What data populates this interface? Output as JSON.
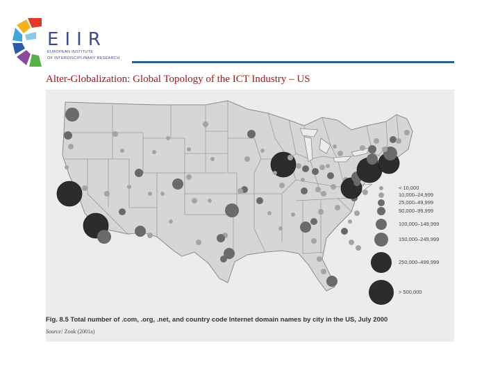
{
  "logo": {
    "word": "EIIR",
    "sub_line1": "European Institute",
    "sub_line2": "of Interdisciplinary Research",
    "colors": [
      "#e2392a",
      "#f6b21b",
      "#3fa8d8",
      "#2d5aa8",
      "#8a4a9c",
      "#56b04a"
    ]
  },
  "slide": {
    "title": "Alter-Globalization: Global Topology of the ICT Industry – US"
  },
  "figure": {
    "caption_label": "Fig. 8.5",
    "caption_text": "Total number of .com, .org, .net, and country code Internet domain names by city in the US, July 2000",
    "source_label": "Source:",
    "source_text": "Zook (2001a)",
    "legend": [
      {
        "label": "< 10,000"
      },
      {
        "label": "10,000–24,999"
      },
      {
        "label": "25,000–49,999"
      },
      {
        "label": "50,000–99,999"
      },
      {
        "label": "100,000–149,999"
      },
      {
        "label": "150,000–249,999"
      },
      {
        "label": "250,000–499,999"
      },
      {
        "label": "> 500,000"
      }
    ],
    "colors": {
      "paper": "#ececec",
      "land": "#d6d6d6",
      "border": "#8a8a8a",
      "dot_small": "#a4a4a4",
      "dot_mid": "#6a6a6a",
      "dot_big": "#2c2c2c"
    }
  }
}
